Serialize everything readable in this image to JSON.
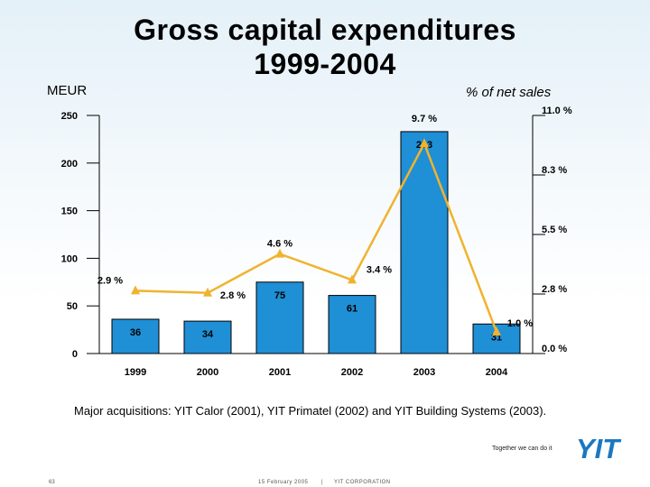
{
  "header": {
    "title_line1": "Gross capital expenditures",
    "title_line2": "1999-2004",
    "unit_left": "MEUR",
    "unit_right": "% of net sales"
  },
  "chart_data": {
    "type": "bar",
    "title": "Gross capital expenditures 1999-2004",
    "categories": [
      "1999",
      "2000",
      "2001",
      "2002",
      "2003",
      "2004"
    ],
    "series": [
      {
        "name": "Gross capital expenditures (MEUR)",
        "type": "bar",
        "axis": "left",
        "values": [
          36,
          34,
          75,
          61,
          233,
          31
        ],
        "labels": [
          "36",
          "34",
          "75",
          "61",
          "233",
          "31"
        ]
      },
      {
        "name": "% of net sales",
        "type": "line",
        "axis": "right",
        "values": [
          2.9,
          2.8,
          4.6,
          3.4,
          9.7,
          1.0
        ],
        "labels": [
          "2.9 %",
          "2.8 %",
          "4.6 %",
          "3.4 %",
          "9.7 %",
          "1.0 %"
        ]
      }
    ],
    "y_left": {
      "label": "MEUR",
      "ylim": [
        0,
        250
      ],
      "ticks": [
        0,
        50,
        100,
        150,
        200,
        250
      ],
      "tick_labels": [
        "0",
        "50",
        "100",
        "150",
        "200",
        "250"
      ]
    },
    "y_right": {
      "label": "% of net sales",
      "ylim": [
        0,
        11
      ],
      "ticks": [
        0,
        2.75,
        5.5,
        8.25,
        11
      ],
      "tick_labels": [
        "0.0 %",
        "2.8 %",
        "5.5 %",
        "8.3 %",
        "11.0 %"
      ]
    },
    "colors": {
      "bar": "#1f8fd6",
      "bar_stroke": "#000000",
      "line": "#f0b32e"
    }
  },
  "note": "Major acquisitions: YIT Calor (2001), YIT Primatel (2002) and YIT Building Systems (2003).",
  "footer": {
    "slogan": "Together we can do it",
    "logo": "YIT",
    "page_number": "63",
    "date": "15 February 2005",
    "separator": "|",
    "company": "YIT CORPORATION"
  },
  "brand_color": "#1a78c2"
}
